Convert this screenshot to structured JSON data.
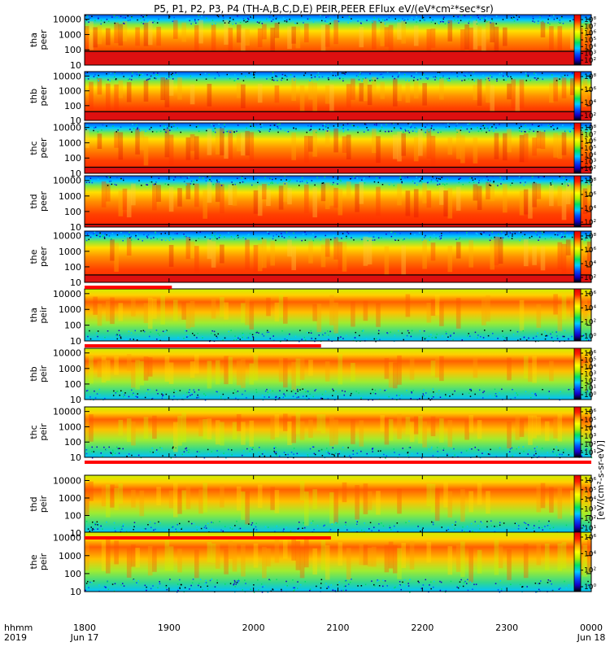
{
  "title": "P5, P1, P2, P3, P4 (TH-A,B,C,D,E) PEIR,PEER EFlux eV/(eV*cm²*sec*sr)",
  "chart_data": {
    "type": "heatmap",
    "title": "P5, P1, P2, P3, P4 (TH-A,B,C,D,E) PEIR,PEER EFlux eV/(eV*cm²*sec*sr)",
    "x_time_ticks": [
      "1800",
      "1900",
      "2000",
      "2100",
      "2200",
      "2300",
      "0000"
    ],
    "x_date_labels": {
      "start": "Jun 17",
      "end": "Jun 18"
    },
    "x_axis_header": {
      "line1": "hhmm",
      "line2": "2019"
    },
    "xlim": [
      "2019-06-17 18:00",
      "2019-06-18 00:00"
    ],
    "y_scale": "log",
    "ylim": [
      10,
      20000
    ],
    "y_ticks": [
      "10000",
      "1000",
      "100",
      "10"
    ],
    "colorbar_scale": "log",
    "colorbar_label": "[eV/(cm²-s-sr-eV)]",
    "panels": [
      {
        "probe": "tha",
        "species": "peer",
        "ylabel_line1": "tha",
        "ylabel_line2": "peer",
        "colorbar_ticks": [
          "10⁸",
          "10⁷",
          "10⁶",
          "10⁵",
          "10⁴",
          "10³",
          "10²"
        ],
        "low_energy_floor": 80
      },
      {
        "probe": "thb",
        "species": "peer",
        "ylabel_line1": "thb",
        "ylabel_line2": "peer",
        "colorbar_ticks": [
          "10⁸",
          "10⁶",
          "10⁴",
          "10²"
        ],
        "low_energy_floor": 40
      },
      {
        "probe": "thc",
        "species": "peer",
        "ylabel_line1": "thc",
        "ylabel_line2": "peer",
        "colorbar_ticks": [
          "10⁸",
          "10⁷",
          "10⁶",
          "10⁵",
          "10⁴",
          "10³",
          "10²"
        ],
        "low_energy_floor": 25
      },
      {
        "probe": "thd",
        "species": "peer",
        "ylabel_line1": "thd",
        "ylabel_line2": "peer",
        "colorbar_ticks": [
          "10⁸",
          "10⁶",
          "10⁴",
          "10²"
        ],
        "low_energy_floor": 15
      },
      {
        "probe": "the",
        "species": "peer",
        "ylabel_line1": "the",
        "ylabel_line2": "peer",
        "colorbar_ticks": [
          "10⁸",
          "10⁶",
          "10⁴",
          "10²"
        ],
        "low_energy_floor": 30
      },
      {
        "probe": "tha",
        "species": "peir",
        "ylabel_line1": "tha",
        "ylabel_line2": "peir",
        "colorbar_ticks": [
          "10⁶",
          "10⁴",
          "10²",
          "10⁰"
        ]
      },
      {
        "probe": "thb",
        "species": "peir",
        "ylabel_line1": "thb",
        "ylabel_line2": "peir",
        "colorbar_ticks": [
          "10⁶",
          "10⁵",
          "10⁴",
          "10³",
          "10²",
          "10¹",
          "10⁰"
        ]
      },
      {
        "probe": "thc",
        "species": "peir",
        "ylabel_line1": "thc",
        "ylabel_line2": "peir",
        "colorbar_ticks": [
          "10⁶",
          "10⁵",
          "10⁴",
          "10³",
          "10²",
          "10¹"
        ]
      },
      {
        "probe": "thd",
        "species": "peir",
        "ylabel_line1": "thd",
        "ylabel_line2": "peir",
        "colorbar_ticks": [
          "10⁶",
          "10⁵",
          "10⁴",
          "10³",
          "10²",
          "10¹"
        ]
      },
      {
        "probe": "the",
        "species": "peir",
        "ylabel_line1": "the",
        "ylabel_line2": "peir",
        "colorbar_ticks": [
          "10⁶",
          "10⁴",
          "10²",
          "10⁰"
        ]
      }
    ],
    "mode_bars": [
      {
        "after_panel": 5,
        "color": "#ff0000",
        "start": "1800",
        "end": "1902"
      },
      {
        "after_panel": 6,
        "color": "#ff0000",
        "start": "1800",
        "end": "2048"
      },
      {
        "after_panel": 8,
        "color": "#ff0000",
        "start": "1800",
        "end": "0000"
      },
      {
        "after_panel": 9,
        "color": "#ff0000",
        "start": "1800",
        "end": "2055"
      }
    ],
    "colors": {
      "background": "#ffffff",
      "colormap": [
        "#000000",
        "#1400c8",
        "#0050ff",
        "#00ccff",
        "#00e060",
        "#aaf000",
        "#ffff00",
        "#ffa000",
        "#ff2000",
        "#e00000"
      ],
      "floor_color": "#dd1010",
      "axis": "#000000"
    }
  }
}
